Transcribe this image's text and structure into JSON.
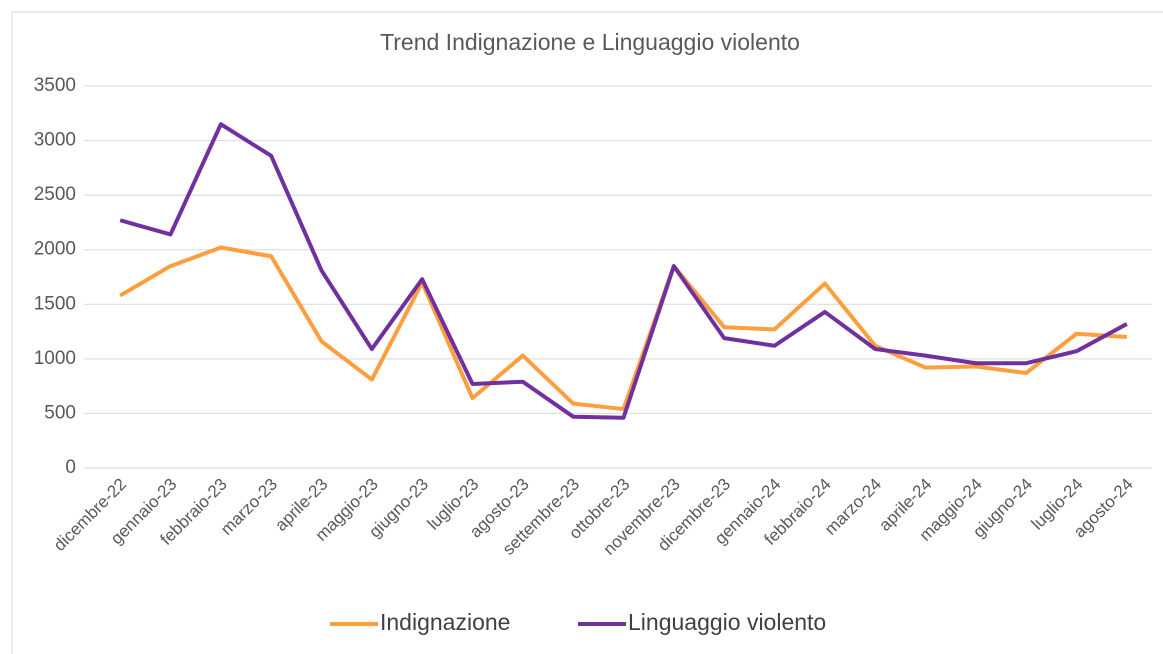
{
  "chart_data": {
    "type": "line",
    "title": "Trend Indignazione e Linguaggio violento",
    "categories": [
      "dicembre-22",
      "gennaio-23",
      "febbraio-23",
      "marzo-23",
      "aprile-23",
      "maggio-23",
      "giugno-23",
      "luglio-23",
      "agosto-23",
      "settembre-23",
      "ottobre-23",
      "novembre-23",
      "dicembre-23",
      "gennaio-24",
      "febbraio-24",
      "marzo-24",
      "aprile-24",
      "maggio-24",
      "giugno-24",
      "luglio-24",
      "agosto-24"
    ],
    "series": [
      {
        "name": "Indignazione",
        "color": "#ff9e3d",
        "values": [
          1580,
          1850,
          2020,
          1940,
          1160,
          810,
          1700,
          640,
          1030,
          590,
          540,
          1850,
          1290,
          1270,
          1690,
          1120,
          920,
          930,
          870,
          1230,
          1200
        ]
      },
      {
        "name": "Linguaggio violento",
        "color": "#7030a0",
        "values": [
          2270,
          2140,
          3150,
          2860,
          1810,
          1090,
          1730,
          770,
          790,
          470,
          460,
          1850,
          1190,
          1120,
          1430,
          1090,
          1030,
          960,
          960,
          1070,
          1320
        ]
      }
    ],
    "ylim": [
      0,
      3500
    ],
    "yticks": [
      0,
      500,
      1000,
      1500,
      2000,
      2500,
      3000,
      3500
    ],
    "grid": true,
    "legend": "bottom"
  }
}
